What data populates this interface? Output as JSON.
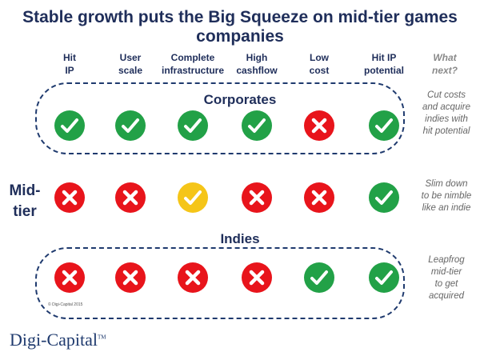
{
  "title": "Stable growth puts the Big Squeeze on mid-tier games companies",
  "columns": [
    {
      "line1": "Hit",
      "line2": "IP"
    },
    {
      "line1": "User",
      "line2": "scale"
    },
    {
      "line1": "Complete",
      "line2": "infrastructure"
    },
    {
      "line1": "High",
      "line2": "cashflow"
    },
    {
      "line1": "Low",
      "line2": "cost"
    },
    {
      "line1": "Hit IP",
      "line2": "potential"
    }
  ],
  "question": {
    "line1": "What",
    "line2": "next?"
  },
  "rows": [
    {
      "label": "Corporates",
      "marks": [
        "check",
        "check",
        "check",
        "check",
        "cross",
        "check"
      ],
      "note": [
        "Cut costs",
        "and acquire",
        "indies with",
        "hit potential"
      ]
    },
    {
      "label_line1": "Mid-",
      "label_line2": "tier",
      "marks": [
        "cross",
        "cross",
        "check-partial",
        "cross",
        "cross",
        "check"
      ],
      "note": [
        "Slim down",
        "to be nimble",
        "like an indie"
      ]
    },
    {
      "label": "Indies",
      "marks": [
        "cross",
        "cross",
        "cross",
        "cross",
        "check",
        "check"
      ],
      "note": [
        "Leapfrog",
        "mid-tier",
        "to get",
        "acquired"
      ]
    }
  ],
  "colors": {
    "check": "#22a147",
    "cross": "#e8141b",
    "partial": "#f5c518",
    "navy": "#1f2e5a"
  },
  "logo": {
    "text": "Digi-Capital",
    "tm": "TM"
  },
  "copyright": "© Digi-Capital 2015"
}
